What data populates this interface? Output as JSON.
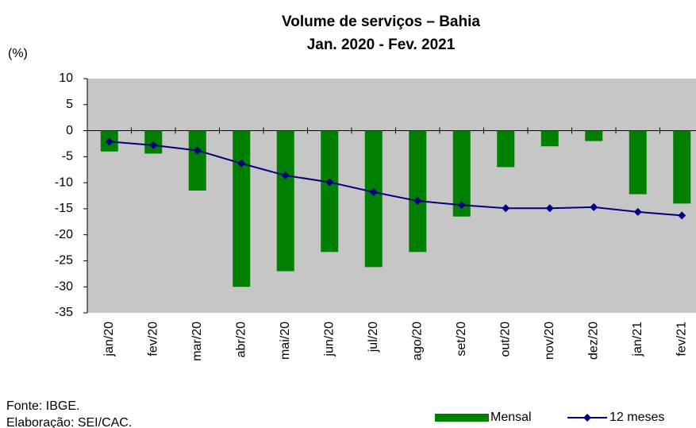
{
  "chart_data": {
    "type": "bar",
    "title": "Volume de serviços – Bahia",
    "subtitle": "Jan. 2020 - Fev. 2021",
    "y_label": "(%)",
    "source": "Fonte: IBGE.",
    "credit": "Elaboração: SEI/CAC.",
    "categories": [
      "jan/20",
      "fev/20",
      "mar/20",
      "abr/20",
      "mai/20",
      "jun/20",
      "jul/20",
      "ago/20",
      "set/20",
      "out/20",
      "nov/20",
      "dez/20",
      "jan/21",
      "fev/21"
    ],
    "series": [
      {
        "name": "Mensal",
        "type": "bar",
        "color": "#008000",
        "values": [
          -4,
          -4.4,
          -11.5,
          -30,
          -27,
          -23.3,
          -26.2,
          -23.3,
          -16.5,
          -7,
          -3,
          -2,
          -12.2,
          -14
        ]
      },
      {
        "name": "12 meses",
        "type": "line",
        "color": "#000080",
        "values": [
          -2.1,
          -2.8,
          -3.8,
          -6.3,
          -8.6,
          -9.9,
          -11.8,
          -13.5,
          -14.3,
          -14.9,
          -14.9,
          -14.7,
          -15.6,
          -16.3
        ]
      }
    ],
    "ylim": [
      -35,
      10
    ],
    "yticks": [
      10,
      5,
      0,
      -5,
      -10,
      -15,
      -20,
      -25,
      -30,
      -35
    ],
    "plot_background": "#c6c6c6"
  }
}
